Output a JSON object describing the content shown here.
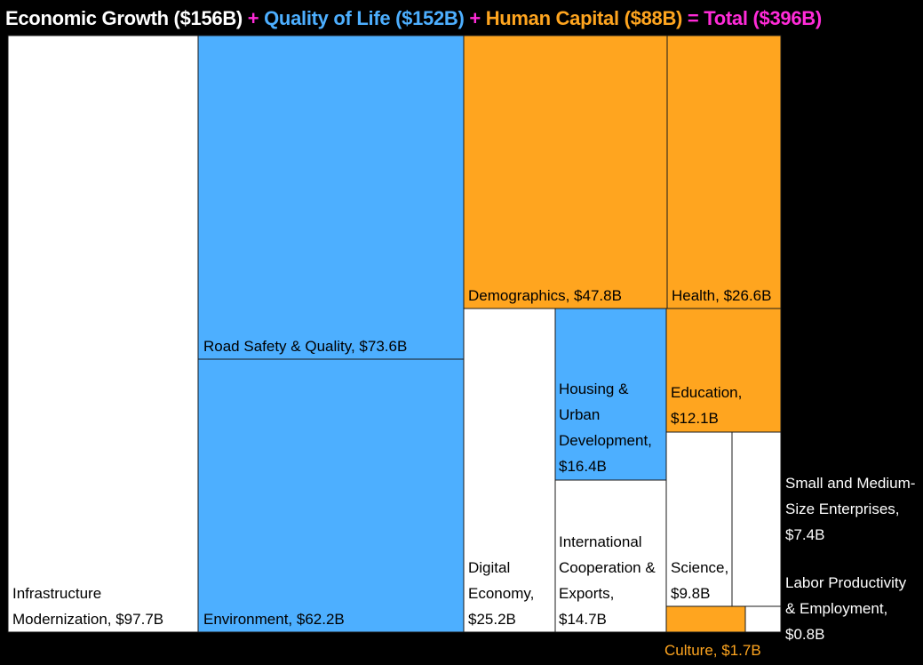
{
  "header": {
    "economic": "Economic Growth ($156B)",
    "plus1": "+",
    "quality": "Quality of Life ($152B)",
    "plus2": "+",
    "human": "Human Capital ($88B)",
    "equals": "=",
    "total": "Total ($396B)"
  },
  "colors": {
    "economic": "#ffffff",
    "quality": "#4dafff",
    "human": "#ffa51f",
    "operator": "#ff2bd8",
    "total": "#ff2bd8",
    "background": "#000000",
    "tile_border": "#1a1a1a",
    "label_dark": "#000000"
  },
  "chart_data": {
    "type": "treemap",
    "unit": "$B",
    "total": 396,
    "groups": [
      {
        "name": "Economic Growth",
        "value": 156
      },
      {
        "name": "Quality of Life",
        "value": 152
      },
      {
        "name": "Human Capital",
        "value": 88
      }
    ],
    "items": [
      {
        "name": "Infrastructure Modernization",
        "value": 97.7,
        "group": "Economic Growth",
        "label_lines": [
          "Infrastructure",
          "Modernization, $97.7B"
        ]
      },
      {
        "name": "Road Safety & Quality",
        "value": 73.6,
        "group": "Quality of Life",
        "label_lines": [
          "Road Safety & Quality, $73.6B"
        ]
      },
      {
        "name": "Environment",
        "value": 62.2,
        "group": "Quality of Life",
        "label_lines": [
          "Environment, $62.2B"
        ]
      },
      {
        "name": "Demographics",
        "value": 47.8,
        "group": "Human Capital",
        "label_lines": [
          "Demographics, $47.8B"
        ]
      },
      {
        "name": "Health",
        "value": 26.6,
        "group": "Human Capital",
        "label_lines": [
          "Health, $26.6B"
        ]
      },
      {
        "name": "Digital Economy",
        "value": 25.2,
        "group": "Economic Growth",
        "label_lines": [
          "Digital",
          "Economy,",
          "$25.2B"
        ]
      },
      {
        "name": "Housing & Urban Development",
        "value": 16.4,
        "group": "Quality of Life",
        "label_lines": [
          "Housing &",
          "Urban",
          "Development,",
          "$16.4B"
        ]
      },
      {
        "name": "International Cooperation & Exports",
        "value": 14.7,
        "group": "Economic Growth",
        "label_lines": [
          "International",
          "Cooperation &",
          "Exports,",
          "$14.7B"
        ]
      },
      {
        "name": "Education",
        "value": 12.1,
        "group": "Human Capital",
        "label_lines": [
          "Education,",
          "$12.1B"
        ]
      },
      {
        "name": "Science",
        "value": 9.8,
        "group": "Economic Growth",
        "label_lines": [
          "Science,",
          "$9.8B"
        ]
      },
      {
        "name": "Small and Medium-Size Enterprises",
        "value": 7.4,
        "group": "Economic Growth",
        "label_lines": [
          "Small and Medium-",
          "Size Enterprises,",
          "$7.4B"
        ]
      },
      {
        "name": "Culture",
        "value": 1.7,
        "group": "Human Capital",
        "label_lines": [
          "Culture, $1.7B"
        ]
      },
      {
        "name": "Labor Productivity & Employment",
        "value": 0.8,
        "group": "Economic Growth",
        "label_lines": [
          "Labor Productivity",
          "& Employment,",
          "$0.8B"
        ]
      }
    ]
  }
}
